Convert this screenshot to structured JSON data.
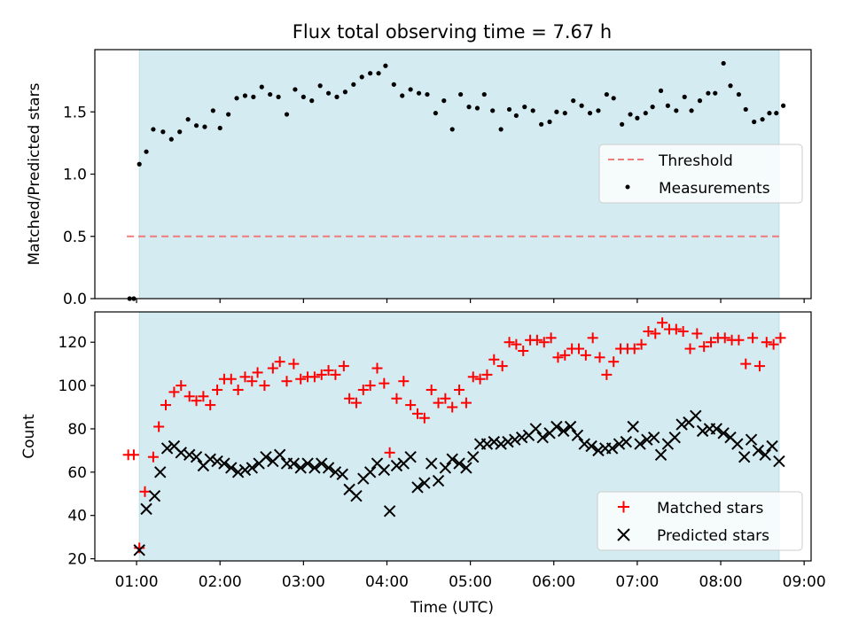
{
  "chart_data": [
    {
      "type": "scatter",
      "title": "Flux total observing time = 7.67 h",
      "ylabel": "Matched/Predicted stars",
      "xlabel": "",
      "xlim": [
        "00:30",
        "09:05"
      ],
      "ylim": [
        0,
        2.0
      ],
      "yticks": [
        0.0,
        0.5,
        1.0,
        1.5
      ],
      "ytick_labels": [
        "0.0",
        "0.5",
        "1.0",
        "1.5"
      ],
      "observing_window": [
        "01:02",
        "08:42"
      ],
      "window_color": "#d3ebf1",
      "threshold": {
        "name": "Threshold",
        "value": 0.5,
        "x": [
          "00:53",
          "08:42"
        ],
        "color": "#f07b7b",
        "dash": true
      },
      "series": [
        {
          "name": "Measurements",
          "color": "#000000",
          "x": [
            "00:55",
            "00:58",
            "01:02",
            "01:07",
            "01:12",
            "01:19",
            "01:25",
            "01:31",
            "01:37",
            "01:43",
            "01:49",
            "01:55",
            "02:00",
            "02:06",
            "02:12",
            "02:18",
            "02:24",
            "02:30",
            "02:36",
            "02:42",
            "02:48",
            "02:54",
            "03:00",
            "03:06",
            "03:12",
            "03:18",
            "03:24",
            "03:30",
            "03:36",
            "03:42",
            "03:48",
            "03:54",
            "03:59",
            "04:05",
            "04:11",
            "04:17",
            "04:23",
            "04:29",
            "04:35",
            "04:41",
            "04:47",
            "04:53",
            "04:59",
            "05:05",
            "05:10",
            "05:16",
            "05:22",
            "05:28",
            "05:33",
            "05:39",
            "05:45",
            "05:51",
            "05:57",
            "06:02",
            "06:08",
            "06:14",
            "06:20",
            "06:26",
            "06:32",
            "06:38",
            "06:43",
            "06:49",
            "06:55",
            "07:00",
            "07:06",
            "07:11",
            "07:17",
            "07:22",
            "07:28",
            "07:34",
            "07:39",
            "07:45",
            "07:51",
            "07:56",
            "08:02",
            "08:07",
            "08:13",
            "08:18",
            "08:24",
            "08:30",
            "08:35",
            "08:40",
            "08:45"
          ],
          "y": [
            0.0,
            0.0,
            1.08,
            1.18,
            1.36,
            1.34,
            1.28,
            1.34,
            1.44,
            1.39,
            1.38,
            1.51,
            1.37,
            1.48,
            1.61,
            1.63,
            1.62,
            1.7,
            1.64,
            1.62,
            1.48,
            1.68,
            1.62,
            1.59,
            1.71,
            1.65,
            1.62,
            1.66,
            1.72,
            1.78,
            1.81,
            1.81,
            1.87,
            1.72,
            1.63,
            1.68,
            1.65,
            1.64,
            1.49,
            1.59,
            1.36,
            1.64,
            1.54,
            1.53,
            1.64,
            1.51,
            1.36,
            1.52,
            1.47,
            1.54,
            1.51,
            1.4,
            1.42,
            1.5,
            1.49,
            1.59,
            1.55,
            1.49,
            1.51,
            1.64,
            1.61,
            1.4,
            1.48,
            1.45,
            1.49,
            1.54,
            1.67,
            1.55,
            1.51,
            1.62,
            1.51,
            1.59,
            1.65,
            1.65,
            1.89,
            1.71,
            1.64,
            1.52,
            1.42,
            1.44,
            1.49,
            1.49,
            1.55
          ]
        }
      ],
      "legend": {
        "placement": "center-right",
        "entries": [
          "Threshold",
          "Measurements"
        ]
      }
    },
    {
      "type": "scatter",
      "title": "",
      "xlabel": "Time (UTC)",
      "ylabel": "Count",
      "xlim": [
        "00:30",
        "09:05"
      ],
      "ylim": [
        19,
        134
      ],
      "yticks": [
        20,
        40,
        60,
        80,
        100,
        120
      ],
      "xticks": [
        "01:00",
        "02:00",
        "03:00",
        "04:00",
        "05:00",
        "06:00",
        "07:00",
        "08:00",
        "09:00"
      ],
      "observing_window": [
        "01:02",
        "08:42"
      ],
      "window_color": "#d3ebf1",
      "series": [
        {
          "name": "Matched stars",
          "marker": "plus",
          "color": "#ff0000",
          "x": [
            "00:54",
            "00:58",
            "01:02",
            "01:06",
            "01:12",
            "01:16",
            "01:21",
            "01:27",
            "01:32",
            "01:38",
            "01:43",
            "01:48",
            "01:53",
            "01:58",
            "02:03",
            "02:08",
            "02:13",
            "02:18",
            "02:23",
            "02:27",
            "02:32",
            "02:38",
            "02:43",
            "02:48",
            "02:53",
            "02:58",
            "03:03",
            "03:08",
            "03:13",
            "03:18",
            "03:23",
            "03:29",
            "03:33",
            "03:38",
            "03:43",
            "03:48",
            "03:53",
            "03:58",
            "04:02",
            "04:07",
            "04:12",
            "04:17",
            "04:22",
            "04:27",
            "04:32",
            "04:37",
            "04:42",
            "04:47",
            "04:52",
            "04:57",
            "05:02",
            "05:07",
            "05:12",
            "05:17",
            "05:23",
            "05:28",
            "05:33",
            "05:38",
            "05:43",
            "05:48",
            "05:53",
            "05:58",
            "06:03",
            "06:08",
            "06:13",
            "06:18",
            "06:23",
            "06:28",
            "06:33",
            "06:38",
            "06:43",
            "06:48",
            "06:53",
            "06:58",
            "07:03",
            "07:08",
            "07:13",
            "07:18",
            "07:23",
            "07:28",
            "07:33",
            "07:38",
            "07:43",
            "07:48",
            "07:53",
            "07:58",
            "08:03",
            "08:08",
            "08:13",
            "08:18",
            "08:23",
            "08:28",
            "08:33",
            "08:38",
            "08:43"
          ],
          "y": [
            68,
            68,
            25,
            51,
            67,
            81,
            91,
            97,
            100,
            95,
            93,
            95,
            91,
            98,
            103,
            103,
            98,
            104,
            102,
            106,
            100,
            108,
            111,
            102,
            110,
            103,
            104,
            104,
            105,
            107,
            105,
            109,
            94,
            92,
            98,
            100,
            108,
            101,
            69,
            94,
            102,
            91,
            87,
            85,
            98,
            92,
            94,
            90,
            98,
            92,
            104,
            103,
            105,
            112,
            109,
            120,
            119,
            116,
            121,
            121,
            120,
            122,
            113,
            114,
            117,
            117,
            114,
            122,
            113,
            105,
            111,
            117,
            117,
            117,
            119,
            125,
            124,
            129,
            126,
            126,
            125,
            117,
            124,
            118,
            120,
            122,
            122,
            121,
            121,
            110,
            122,
            109,
            120,
            119,
            122
          ]
        },
        {
          "name": "Predicted stars",
          "marker": "x",
          "color": "#000000",
          "x": [
            "01:02",
            "01:07",
            "01:13",
            "01:17",
            "01:22",
            "01:27",
            "01:32",
            "01:38",
            "01:43",
            "01:48",
            "01:53",
            "01:58",
            "02:03",
            "02:08",
            "02:13",
            "02:18",
            "02:23",
            "02:28",
            "02:33",
            "02:38",
            "02:43",
            "02:48",
            "02:53",
            "02:58",
            "03:03",
            "03:08",
            "03:13",
            "03:18",
            "03:23",
            "03:28",
            "03:33",
            "03:38",
            "03:43",
            "03:48",
            "03:53",
            "03:58",
            "04:02",
            "04:07",
            "04:12",
            "04:17",
            "04:22",
            "04:27",
            "04:32",
            "04:37",
            "04:42",
            "04:47",
            "04:52",
            "04:57",
            "05:02",
            "05:07",
            "05:12",
            "05:17",
            "05:22",
            "05:27",
            "05:32",
            "05:37",
            "05:42",
            "05:47",
            "05:52",
            "05:57",
            "06:02",
            "06:07",
            "06:12",
            "06:17",
            "06:22",
            "06:27",
            "06:32",
            "06:37",
            "06:42",
            "06:47",
            "06:52",
            "06:57",
            "07:02",
            "07:07",
            "07:12",
            "07:17",
            "07:22",
            "07:27",
            "07:32",
            "07:37",
            "07:42",
            "07:47",
            "07:52",
            "07:57",
            "08:02",
            "08:07",
            "08:12",
            "08:17",
            "08:22",
            "08:27",
            "08:32",
            "08:37",
            "08:42"
          ],
          "y": [
            24,
            43,
            49,
            60,
            71,
            72,
            69,
            68,
            67,
            63,
            66,
            65,
            64,
            62,
            60,
            61,
            62,
            64,
            67,
            65,
            68,
            64,
            64,
            62,
            64,
            62,
            64,
            62,
            60,
            59,
            52,
            49,
            57,
            60,
            64,
            61,
            42,
            63,
            64,
            67,
            53,
            55,
            64,
            56,
            62,
            66,
            64,
            62,
            67,
            73,
            73,
            74,
            73,
            74,
            75,
            76,
            77,
            80,
            76,
            78,
            81,
            79,
            81,
            77,
            73,
            72,
            70,
            71,
            71,
            73,
            74,
            81,
            73,
            75,
            76,
            68,
            73,
            76,
            82,
            83,
            86,
            79,
            80,
            80,
            78,
            76,
            73,
            67,
            75,
            70,
            68,
            72,
            65
          ]
        }
      ],
      "legend": {
        "placement": "lower-right",
        "entries": [
          "Matched stars",
          "Predicted stars"
        ]
      }
    }
  ]
}
